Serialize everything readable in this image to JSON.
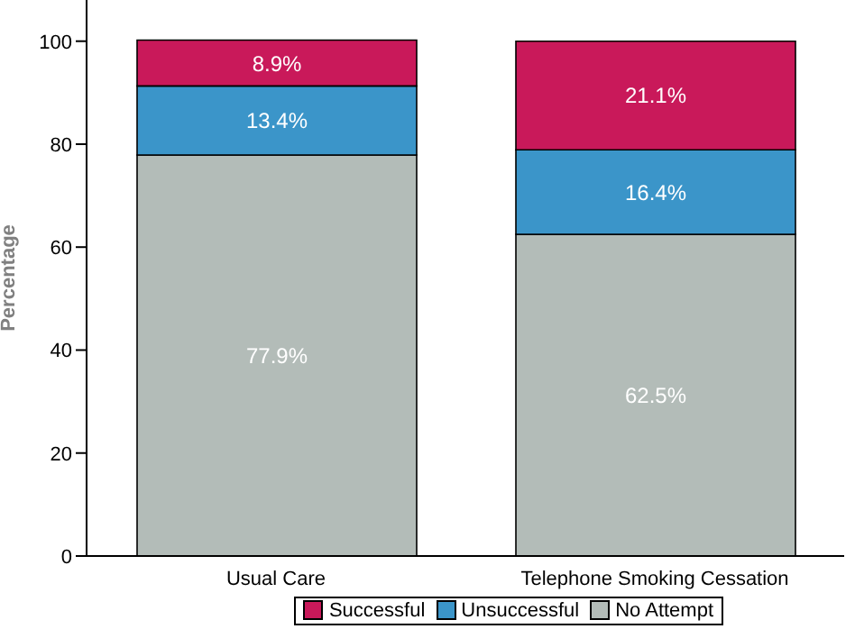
{
  "chart_data": {
    "type": "bar",
    "stacked": true,
    "categories": [
      "Usual Care",
      "Telephone Smoking Cessation"
    ],
    "ylabel": "Percentage",
    "ylim": [
      0,
      108
    ],
    "yticks": [
      0,
      20,
      40,
      60,
      80,
      100
    ],
    "grid": false,
    "legend": "bottom",
    "series": [
      {
        "name": "No Attempt",
        "color": "#b3bcb8",
        "values": [
          77.9,
          62.5
        ],
        "value_labels": [
          "77.9%",
          "62.5%"
        ]
      },
      {
        "name": "Unsuccessful",
        "color": "#3b95c9",
        "values": [
          13.4,
          16.4
        ],
        "value_labels": [
          "13.4%",
          "16.4%"
        ]
      },
      {
        "name": "Successful",
        "color": "#c9195a",
        "values": [
          8.9,
          21.1
        ],
        "value_labels": [
          "8.9%",
          "21.1%"
        ]
      }
    ]
  }
}
